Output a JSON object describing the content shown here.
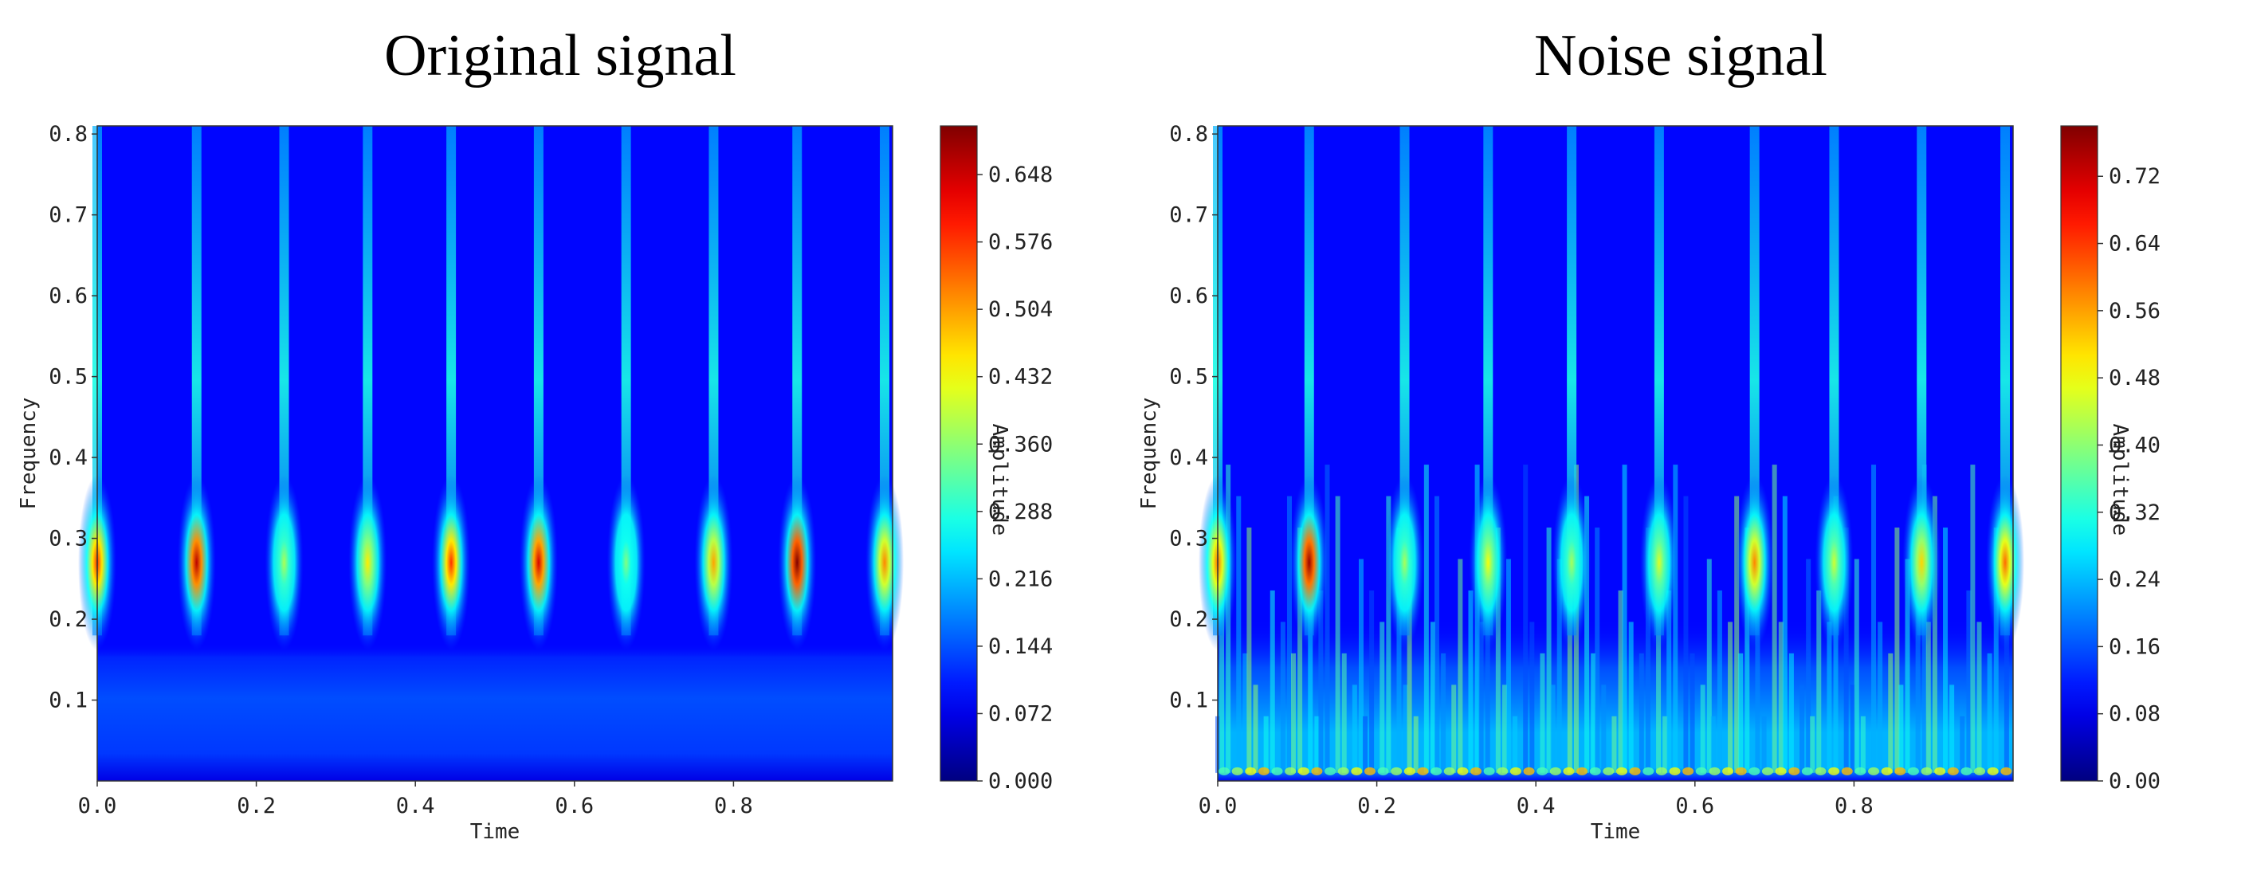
{
  "chart_data": [
    {
      "type": "heatmap",
      "title": "Original signal",
      "xlabel": "Time",
      "ylabel": "Frequency",
      "colorbar_label": "Amplitude",
      "colormap": "jet",
      "xlim": [
        0.0,
        1.0
      ],
      "ylim": [
        0.0,
        0.81
      ],
      "x_ticks": [
        "0.0",
        "0.2",
        "0.4",
        "0.6",
        "0.8"
      ],
      "y_ticks": [
        "0.1",
        "0.2",
        "0.3",
        "0.4",
        "0.5",
        "0.6",
        "0.7",
        "0.8"
      ],
      "colorbar_ticks": [
        "0.000",
        "0.072",
        "0.144",
        "0.216",
        "0.288",
        "0.360",
        "0.432",
        "0.504",
        "0.576",
        "0.648"
      ],
      "value_range": [
        0.0,
        0.7
      ],
      "peak_frequency": 0.27,
      "events": [
        {
          "t": 0.0,
          "amp": 0.58
        },
        {
          "t": 0.125,
          "amp": 0.66
        },
        {
          "t": 0.235,
          "amp": 0.38
        },
        {
          "t": 0.34,
          "amp": 0.45
        },
        {
          "t": 0.445,
          "amp": 0.58
        },
        {
          "t": 0.555,
          "amp": 0.64
        },
        {
          "t": 0.665,
          "amp": 0.35
        },
        {
          "t": 0.775,
          "amp": 0.5
        },
        {
          "t": 0.88,
          "amp": 0.7
        },
        {
          "t": 0.99,
          "amp": 0.52
        }
      ]
    },
    {
      "type": "heatmap",
      "title": "Noise signal",
      "xlabel": "Time",
      "ylabel": "Frequency",
      "colorbar_label": "Amplitude",
      "colormap": "jet",
      "xlim": [
        0.0,
        1.0
      ],
      "ylim": [
        0.0,
        0.81
      ],
      "x_ticks": [
        "0.0",
        "0.2",
        "0.4",
        "0.6",
        "0.8"
      ],
      "y_ticks": [
        "0.1",
        "0.2",
        "0.3",
        "0.4",
        "0.5",
        "0.6",
        "0.7",
        "0.8"
      ],
      "colorbar_ticks": [
        "0.00",
        "0.08",
        "0.16",
        "0.24",
        "0.32",
        "0.40",
        "0.48",
        "0.56",
        "0.64",
        "0.72"
      ],
      "value_range": [
        0.0,
        0.78
      ],
      "peak_frequency": 0.27,
      "events": [
        {
          "t": 0.0,
          "amp": 0.6
        },
        {
          "t": 0.115,
          "amp": 0.76
        },
        {
          "t": 0.235,
          "amp": 0.42
        },
        {
          "t": 0.34,
          "amp": 0.48
        },
        {
          "t": 0.445,
          "amp": 0.42
        },
        {
          "t": 0.555,
          "amp": 0.46
        },
        {
          "t": 0.675,
          "amp": 0.58
        },
        {
          "t": 0.775,
          "amp": 0.45
        },
        {
          "t": 0.885,
          "amp": 0.52
        },
        {
          "t": 0.99,
          "amp": 0.6
        }
      ]
    }
  ]
}
